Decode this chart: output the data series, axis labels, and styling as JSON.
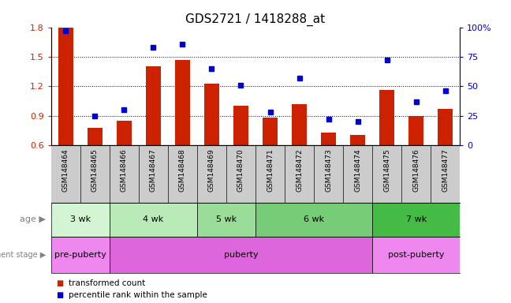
{
  "title": "GDS2721 / 1418288_at",
  "samples": [
    "GSM148464",
    "GSM148465",
    "GSM148466",
    "GSM148467",
    "GSM148468",
    "GSM148469",
    "GSM148470",
    "GSM148471",
    "GSM148472",
    "GSM148473",
    "GSM148474",
    "GSM148475",
    "GSM148476",
    "GSM148477"
  ],
  "bar_values": [
    1.8,
    0.78,
    0.85,
    1.4,
    1.47,
    1.23,
    1.0,
    0.88,
    1.02,
    0.73,
    0.71,
    1.16,
    0.9,
    0.97
  ],
  "dot_values": [
    97,
    25,
    30,
    83,
    86,
    65,
    51,
    28,
    57,
    22,
    20,
    72,
    37,
    46
  ],
  "bar_color": "#cc2200",
  "dot_color": "#0000cc",
  "ylim_left": [
    0.6,
    1.8
  ],
  "ylim_right": [
    0,
    100
  ],
  "yticks_left": [
    0.6,
    0.9,
    1.2,
    1.5,
    1.8
  ],
  "yticks_right": [
    0,
    25,
    50,
    75,
    100
  ],
  "yticklabels_right": [
    "0",
    "25",
    "50",
    "75",
    "100%"
  ],
  "age_groups": [
    {
      "label": "3 wk",
      "start": 0,
      "end": 1,
      "color": "#d4f5d4"
    },
    {
      "label": "4 wk",
      "start": 2,
      "end": 4,
      "color": "#b8ebb8"
    },
    {
      "label": "5 wk",
      "start": 5,
      "end": 6,
      "color": "#99dd99"
    },
    {
      "label": "6 wk",
      "start": 7,
      "end": 10,
      "color": "#77cc77"
    },
    {
      "label": "7 wk",
      "start": 11,
      "end": 13,
      "color": "#44bb44"
    }
  ],
  "dev_groups": [
    {
      "label": "pre-puberty",
      "start": 0,
      "end": 1,
      "color": "#ee88ee"
    },
    {
      "label": "puberty",
      "start": 2,
      "end": 10,
      "color": "#dd66dd"
    },
    {
      "label": "post-puberty",
      "start": 11,
      "end": 13,
      "color": "#ee88ee"
    }
  ],
  "legend_bar_label": "transformed count",
  "legend_dot_label": "percentile rank within the sample",
  "age_label": "age",
  "dev_label": "development stage",
  "sample_bg_color": "#cccccc",
  "sample_label_fontsize": 6.5,
  "bar_width": 0.5
}
